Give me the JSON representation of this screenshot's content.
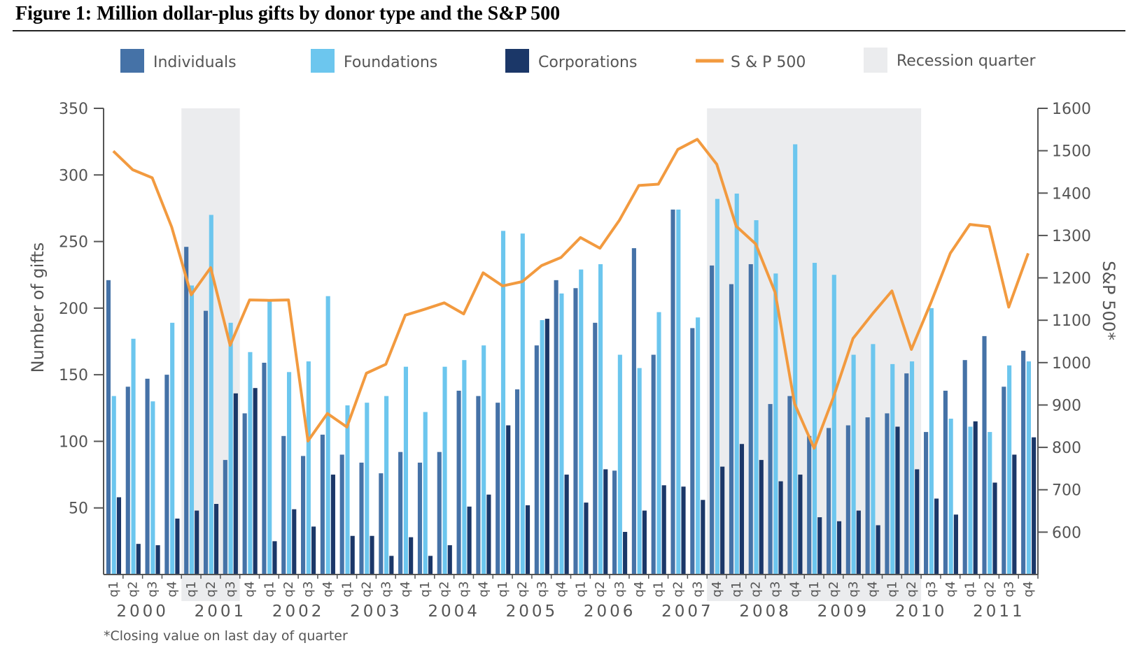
{
  "figure": {
    "title": "Figure 1: Million dollar-plus gifts by donor type and the S&P 500",
    "footnote": "*Closing value on last day of quarter"
  },
  "colors": {
    "individuals": "#4572a7",
    "foundations": "#6cc6ee",
    "corporations": "#1b3768",
    "sp500": "#f29a3f",
    "recession": "#ebecee",
    "axis": "#555555"
  },
  "chart_data": {
    "type": "bar",
    "title": "",
    "ylabel_left": "Number of gifts",
    "ylabel_right": "S&P 500*",
    "ylim_left": [
      0,
      350
    ],
    "yticks_left": [
      50,
      100,
      150,
      200,
      250,
      300,
      350
    ],
    "ylim_right": [
      500,
      1600
    ],
    "yticks_right": [
      600,
      700,
      800,
      900,
      1000,
      1100,
      1200,
      1300,
      1400,
      1500,
      1600
    ],
    "legend_position": "top",
    "legend": [
      "Individuals",
      "Foundations",
      "Corporations",
      "S & P 500",
      "Recession quarter"
    ],
    "years": [
      "2000",
      "2001",
      "2002",
      "2003",
      "2004",
      "2005",
      "2006",
      "2007",
      "2008",
      "2009",
      "2010",
      "2011"
    ],
    "quarter_labels": [
      "q1",
      "q2",
      "q3",
      "q4"
    ],
    "recession_ranges": [
      {
        "from_index": 4,
        "to_index": 6
      },
      {
        "from_index": 31,
        "to_index": 41
      }
    ],
    "series": [
      {
        "name": "Individuals",
        "kind": "bar",
        "values": [
          221,
          141,
          147,
          150,
          246,
          198,
          86,
          121,
          159,
          104,
          89,
          105,
          90,
          84,
          76,
          92,
          84,
          92,
          138,
          134,
          129,
          139,
          172,
          221,
          215,
          189,
          78,
          245,
          165,
          274,
          185,
          232,
          218,
          233,
          128,
          134,
          104,
          110,
          112,
          118,
          121,
          151,
          107,
          138,
          161,
          179,
          141,
          168
        ]
      },
      {
        "name": "Foundations",
        "kind": "bar",
        "values": [
          134,
          177,
          130,
          189,
          217,
          270,
          189,
          167,
          206,
          152,
          160,
          209,
          127,
          129,
          134,
          156,
          122,
          156,
          161,
          172,
          258,
          256,
          191,
          211,
          229,
          233,
          165,
          155,
          197,
          274,
          193,
          282,
          286,
          266,
          226,
          323,
          234,
          225,
          165,
          173,
          158,
          160,
          200,
          117,
          111,
          107,
          157,
          160
        ]
      },
      {
        "name": "Corporations",
        "kind": "bar",
        "values": [
          58,
          23,
          22,
          42,
          48,
          53,
          136,
          140,
          25,
          49,
          36,
          75,
          29,
          29,
          14,
          28,
          14,
          22,
          51,
          60,
          112,
          52,
          192,
          75,
          54,
          79,
          32,
          48,
          67,
          66,
          56,
          81,
          98,
          86,
          70,
          75,
          43,
          40,
          48,
          37,
          111,
          79,
          57,
          45,
          115,
          69,
          90,
          103
        ]
      },
      {
        "name": "S & P 500",
        "kind": "line",
        "values": [
          1499,
          1455,
          1436,
          1320,
          1160,
          1224,
          1041,
          1148,
          1147,
          1148,
          815,
          880,
          848,
          975,
          996,
          1112,
          1126,
          1141,
          1115,
          1212,
          1181,
          1191,
          1229,
          1248,
          1295,
          1270,
          1336,
          1418,
          1421,
          1503,
          1527,
          1468,
          1322,
          1280,
          1166,
          903,
          798,
          919,
          1057,
          1115,
          1169,
          1031,
          1141,
          1258,
          1326,
          1321,
          1131,
          1258
        ]
      }
    ]
  }
}
